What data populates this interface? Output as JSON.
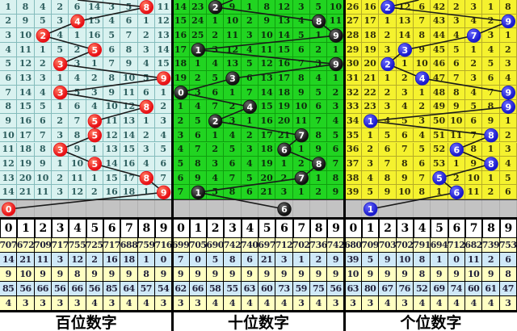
{
  "chart_data": {
    "type": "table",
    "description": "3D lottery trend chart: miss counts per digit column with drawn digit circled, for hundreds / tens / units positions",
    "header_digits": [
      "0",
      "1",
      "2",
      "3",
      "4",
      "5",
      "6",
      "7",
      "8",
      "9"
    ],
    "shared_colors": {
      "gray_band": "#c3c3c3",
      "header_bg": "#ffffff",
      "stat_yellow": "#ffffc2",
      "stat_cyan": "#cfe9f8",
      "trend_line": "#1a1a1a",
      "border": "#000000"
    },
    "panels": [
      {
        "key": "hundreds",
        "title": "百位数字",
        "colors": {
          "bg": "#d9f2f0",
          "grid": "#85bcbc",
          "circle": "#e81016",
          "circle_hi": "#ff7a60",
          "text": "#2e5f5f"
        },
        "entry_col": 4.5,
        "grid": [
          [
            1,
            8,
            4,
            2,
            6,
            14,
            3,
            5,
            8,
            11
          ],
          [
            2,
            9,
            5,
            3,
            4,
            15,
            4,
            6,
            1,
            12
          ],
          [
            3,
            10,
            2,
            4,
            1,
            16,
            5,
            7,
            2,
            13
          ],
          [
            4,
            11,
            1,
            5,
            2,
            5,
            6,
            8,
            3,
            14
          ],
          [
            5,
            12,
            2,
            3,
            3,
            1,
            7,
            9,
            4,
            15
          ],
          [
            6,
            13,
            3,
            1,
            4,
            2,
            8,
            10,
            5,
            9
          ],
          [
            7,
            14,
            4,
            3,
            5,
            3,
            9,
            11,
            6,
            1
          ],
          [
            8,
            15,
            5,
            1,
            6,
            4,
            10,
            12,
            8,
            2
          ],
          [
            9,
            16,
            6,
            2,
            7,
            5,
            11,
            13,
            1,
            3
          ],
          [
            10,
            17,
            7,
            3,
            8,
            5,
            12,
            14,
            2,
            4
          ],
          [
            11,
            18,
            8,
            3,
            9,
            1,
            13,
            15,
            3,
            5
          ],
          [
            12,
            19,
            9,
            1,
            10,
            5,
            14,
            16,
            4,
            6
          ],
          [
            13,
            20,
            10,
            2,
            11,
            1,
            15,
            17,
            8,
            7
          ],
          [
            14,
            21,
            11,
            3,
            12,
            2,
            16,
            18,
            1,
            9
          ]
        ],
        "hits": [
          8,
          4,
          2,
          5,
          3,
          9,
          3,
          8,
          5,
          5,
          3,
          5,
          8,
          9
        ],
        "pending_col": 0,
        "pending_digit": 0,
        "stats": [
          [
            707,
            672,
            709,
            717,
            755,
            725,
            717,
            688,
            759,
            716
          ],
          [
            14,
            21,
            11,
            3,
            12,
            2,
            16,
            18,
            1,
            0
          ],
          [
            9,
            10,
            9,
            9,
            8,
            9,
            9,
            9,
            8,
            9
          ],
          [
            85,
            56,
            66,
            56,
            66,
            56,
            85,
            64,
            57,
            54
          ],
          [
            4,
            3,
            3,
            3,
            3,
            4,
            3,
            4,
            4,
            3
          ]
        ]
      },
      {
        "key": "tens",
        "title": "十位数字",
        "colors": {
          "bg": "#21d421",
          "grid": "#0f9e0f",
          "circle": "#111111",
          "circle_hi": "#6a6a6a",
          "text": "#0d2d0d"
        },
        "entry_col": 3.5,
        "grid": [
          [
            14,
            23,
            2,
            9,
            1,
            8,
            12,
            3,
            5,
            10
          ],
          [
            15,
            24,
            1,
            10,
            2,
            9,
            13,
            4,
            8,
            11
          ],
          [
            16,
            25,
            2,
            11,
            3,
            10,
            14,
            5,
            1,
            9
          ],
          [
            17,
            1,
            3,
            12,
            4,
            11,
            15,
            6,
            2,
            1
          ],
          [
            18,
            1,
            4,
            13,
            5,
            12,
            16,
            7,
            3,
            9
          ],
          [
            19,
            2,
            5,
            3,
            6,
            13,
            17,
            8,
            4,
            1
          ],
          [
            0,
            3,
            6,
            1,
            7,
            14,
            18,
            9,
            5,
            2
          ],
          [
            1,
            4,
            7,
            2,
            4,
            15,
            19,
            10,
            6,
            3
          ],
          [
            2,
            5,
            2,
            3,
            1,
            16,
            20,
            11,
            7,
            4
          ],
          [
            3,
            6,
            1,
            4,
            2,
            17,
            21,
            7,
            8,
            5
          ],
          [
            4,
            7,
            2,
            5,
            3,
            18,
            6,
            1,
            9,
            6
          ],
          [
            5,
            8,
            3,
            6,
            4,
            19,
            1,
            2,
            8,
            7
          ],
          [
            6,
            9,
            4,
            7,
            5,
            20,
            2,
            7,
            1,
            8
          ],
          [
            7,
            1,
            5,
            8,
            6,
            21,
            3,
            1,
            2,
            9
          ]
        ],
        "hits": [
          2,
          8,
          9,
          1,
          9,
          3,
          0,
          4,
          2,
          7,
          6,
          8,
          7,
          1
        ],
        "pending_col": 6,
        "pending_digit": 6,
        "stats": [
          [
            699,
            705,
            690,
            742,
            740,
            697,
            712,
            702,
            736,
            742
          ],
          [
            7,
            0,
            5,
            8,
            6,
            21,
            3,
            1,
            2,
            9
          ],
          [
            9,
            9,
            9,
            9,
            9,
            9,
            9,
            9,
            9,
            9
          ],
          [
            62,
            66,
            58,
            55,
            63,
            60,
            73,
            59,
            75,
            56
          ],
          [
            3,
            3,
            4,
            4,
            4,
            4,
            4,
            3,
            4,
            3
          ]
        ]
      },
      {
        "key": "units",
        "title": "个位数字",
        "colors": {
          "bg": "#f5f22e",
          "grid": "#b5ac27",
          "circle": "#1a1acc",
          "circle_hi": "#6a6aff",
          "text": "#33300a"
        },
        "entry_col": 4.3,
        "grid": [
          [
            26,
            16,
            2,
            12,
            6,
            42,
            2,
            3,
            1,
            8
          ],
          [
            27,
            17,
            1,
            13,
            7,
            43,
            3,
            4,
            2,
            9
          ],
          [
            28,
            18,
            2,
            14,
            8,
            44,
            4,
            7,
            3,
            1
          ],
          [
            29,
            19,
            3,
            3,
            9,
            45,
            5,
            1,
            4,
            2
          ],
          [
            30,
            20,
            2,
            1,
            10,
            46,
            6,
            2,
            5,
            3
          ],
          [
            31,
            21,
            1,
            2,
            4,
            47,
            7,
            3,
            6,
            4
          ],
          [
            32,
            22,
            2,
            3,
            1,
            48,
            8,
            4,
            7,
            9
          ],
          [
            33,
            23,
            3,
            4,
            2,
            49,
            9,
            5,
            8,
            9
          ],
          [
            34,
            1,
            4,
            5,
            3,
            50,
            10,
            6,
            9,
            1
          ],
          [
            35,
            1,
            5,
            6,
            4,
            51,
            11,
            7,
            8,
            2
          ],
          [
            36,
            2,
            6,
            7,
            5,
            52,
            6,
            8,
            1,
            3
          ],
          [
            37,
            3,
            7,
            8,
            6,
            53,
            1,
            9,
            8,
            4
          ],
          [
            38,
            4,
            8,
            9,
            7,
            5,
            2,
            10,
            1,
            5
          ],
          [
            39,
            5,
            9,
            10,
            8,
            1,
            6,
            11,
            2,
            6
          ]
        ],
        "hits": [
          2,
          9,
          7,
          3,
          2,
          4,
          9,
          9,
          1,
          8,
          6,
          8,
          5,
          6
        ],
        "pending_col": 1,
        "pending_digit": 1,
        "stats": [
          [
            680,
            709,
            703,
            702,
            791,
            694,
            712,
            682,
            739,
            753
          ],
          [
            39,
            5,
            9,
            10,
            8,
            1,
            0,
            11,
            2,
            6
          ],
          [
            10,
            9,
            9,
            9,
            8,
            9,
            9,
            10,
            9,
            8
          ],
          [
            63,
            80,
            67,
            76,
            52,
            69,
            74,
            60,
            61,
            47
          ],
          [
            3,
            3,
            4,
            3,
            4,
            4,
            4,
            4,
            4,
            3
          ]
        ]
      }
    ]
  }
}
